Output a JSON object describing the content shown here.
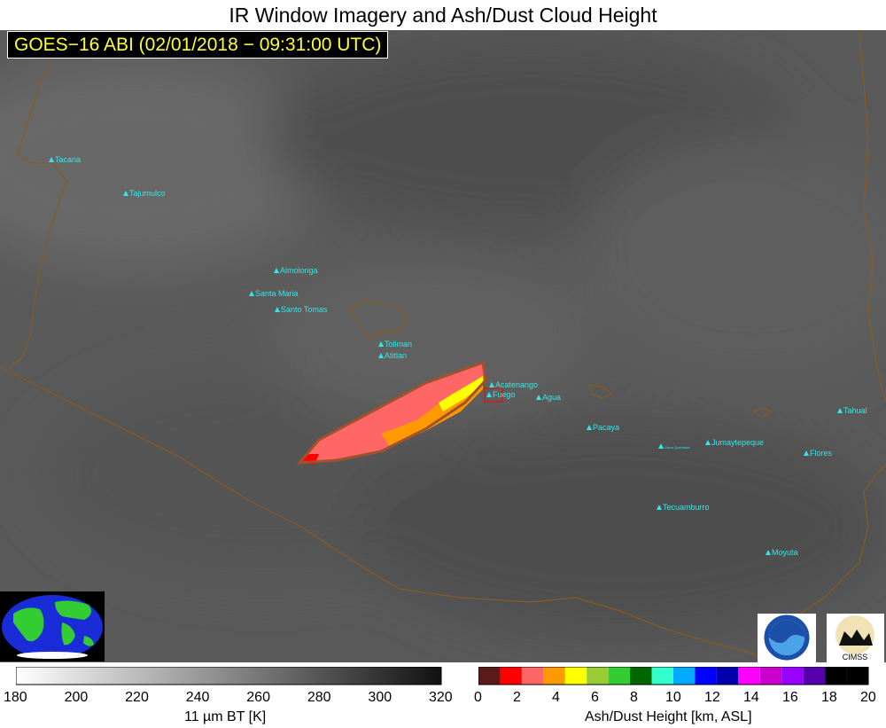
{
  "title": "IR Window Imagery and Ash/Dust Cloud Height",
  "subtitle": "GOES−16 ABI (02/01/2018 − 09:31:00 UTC)",
  "volcanoes": [
    {
      "name": "Tacana"
    },
    {
      "name": "Tajumulco"
    },
    {
      "name": "Almolonga"
    },
    {
      "name": "Santa Maria"
    },
    {
      "name": "Santo Tomas"
    },
    {
      "name": "Toliman"
    },
    {
      "name": "Atitlan"
    },
    {
      "name": "Acatenango"
    },
    {
      "name": "Fuego"
    },
    {
      "name": "Agua"
    },
    {
      "name": "Pacaya"
    },
    {
      "name": "Cerro Quemado"
    },
    {
      "name": "Jumaytepeque"
    },
    {
      "name": "Tahual"
    },
    {
      "name": "Flores"
    },
    {
      "name": "Tecuamburro"
    },
    {
      "name": "Moyuta"
    }
  ],
  "bt_colorbar": {
    "label": "11 µm BT [K]",
    "ticks": [
      "180",
      "200",
      "220",
      "240",
      "260",
      "280",
      "300",
      "320"
    ]
  },
  "height_colorbar": {
    "label": "Ash/Dust Height [km, ASL]",
    "ticks": [
      "0",
      "2",
      "4",
      "6",
      "8",
      "10",
      "12",
      "14",
      "16",
      "18",
      "20"
    ],
    "colors": [
      "#5a1a1a",
      "#ff0000",
      "#ff6666",
      "#ff9900",
      "#ffff00",
      "#99cc33",
      "#33cc33",
      "#006600",
      "#33ffcc",
      "#00aaff",
      "#0000ff",
      "#0000aa",
      "#ff00ff",
      "#cc00cc",
      "#9900ff",
      "#5500aa",
      "#000000",
      "#000000"
    ]
  },
  "logos": {
    "noaa": "NOAA",
    "cimss": "CIMSS"
  }
}
